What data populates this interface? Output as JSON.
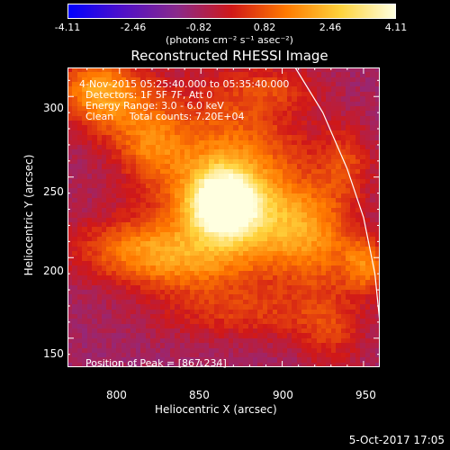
{
  "chart_data": {
    "type": "heatmap",
    "title": "Reconstructed RHESSI Image",
    "xlabel": "Heliocentric X (arcsec)",
    "ylabel": "Heliocentric Y (arcsec)",
    "xlim": [
      768,
      960
    ],
    "ylim": [
      132,
      318
    ],
    "xticks": [
      800,
      850,
      900,
      950
    ],
    "xtick_labels": [
      "800",
      "850",
      "900",
      "950"
    ],
    "yticks": [
      150,
      200,
      250,
      300
    ],
    "ytick_labels": [
      "150",
      "200",
      "250",
      "300"
    ],
    "colorbar": {
      "min": -4.11,
      "max": 4.11,
      "ticks": [
        "-4.11",
        "-2.46",
        "-0.82",
        "0.82",
        "2.46",
        "4.11"
      ],
      "units": "(photons cm⁻² s⁻¹ asec⁻²)"
    },
    "annotations": {
      "time": "4-Nov-2015 05:25:40.000 to 05:35:40.000",
      "detectors": "Detectors: 1F 5F 7F, Att 0",
      "energy": "Energy Range: 3.0 - 6.0 keV",
      "clean": "Clean     Total counts: 7.20E+04",
      "peak": "Position of Peak = [867,234]"
    },
    "peak": [
      867,
      234
    ],
    "limb_curve": [
      [
        908,
        318
      ],
      [
        925,
        290
      ],
      [
        940,
        255
      ],
      [
        950,
        225
      ],
      [
        957,
        190
      ],
      [
        960,
        160
      ],
      [
        961,
        135
      ]
    ],
    "blobs": [
      {
        "x": 864,
        "y": 233,
        "sx": 14,
        "sy": 14,
        "amp": 5.0
      },
      {
        "x": 866,
        "y": 250,
        "sx": 35,
        "sy": 38,
        "amp": 2.6
      },
      {
        "x": 900,
        "y": 220,
        "sx": 22,
        "sy": 18,
        "amp": 1.6
      },
      {
        "x": 925,
        "y": 205,
        "sx": 18,
        "sy": 26,
        "amp": 1.4
      },
      {
        "x": 952,
        "y": 195,
        "sx": 10,
        "sy": 12,
        "amp": 2.0
      },
      {
        "x": 785,
        "y": 305,
        "sx": 18,
        "sy": 14,
        "amp": 2.2
      },
      {
        "x": 800,
        "y": 290,
        "sx": 20,
        "sy": 18,
        "amp": 1.2
      },
      {
        "x": 820,
        "y": 270,
        "sx": 14,
        "sy": 16,
        "amp": 1.2
      },
      {
        "x": 810,
        "y": 205,
        "sx": 30,
        "sy": 14,
        "amp": 1.8
      },
      {
        "x": 845,
        "y": 195,
        "sx": 30,
        "sy": 14,
        "amp": 1.2
      },
      {
        "x": 880,
        "y": 165,
        "sx": 40,
        "sy": 12,
        "amp": 1.1
      },
      {
        "x": 940,
        "y": 260,
        "sx": 12,
        "sy": 16,
        "amp": 1.2
      },
      {
        "x": 930,
        "y": 150,
        "sx": 14,
        "sy": 14,
        "amp": 1.0
      },
      {
        "x": 895,
        "y": 305,
        "sx": 20,
        "sy": 10,
        "amp": 0.9
      }
    ],
    "baseline": -0.9,
    "colors": [
      "#0000ff",
      "#5010c8",
      "#8a2a8a",
      "#d01818",
      "#ff7a00",
      "#ffd33c",
      "#ffffe0"
    ]
  },
  "footer": {
    "date": "5-Oct-2017 17:05"
  }
}
